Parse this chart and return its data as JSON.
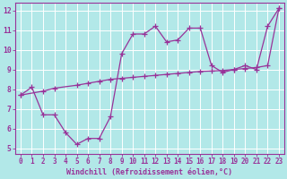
{
  "xlabel": "Windchill (Refroidissement éolien,°C)",
  "background_color": "#b2e8e8",
  "grid_color": "#ffffff",
  "line_color": "#993399",
  "xlim": [
    -0.5,
    23.5
  ],
  "ylim": [
    4.7,
    12.4
  ],
  "xtick_vals": [
    0,
    1,
    2,
    3,
    4,
    5,
    6,
    7,
    8,
    9,
    10,
    11,
    12,
    13,
    14,
    15,
    16,
    17,
    18,
    19,
    20,
    21,
    22,
    23
  ],
  "xtick_labels": [
    "0",
    "1",
    "2",
    "3",
    "4",
    "5",
    "6",
    "7",
    "8",
    "9",
    "10",
    "11",
    "12",
    "13",
    "14",
    "15",
    "16",
    "17",
    "18",
    "19",
    "20",
    "21",
    "22",
    "23"
  ],
  "ytick_vals": [
    5,
    6,
    7,
    8,
    9,
    10,
    11,
    12
  ],
  "ytick_labels": [
    "5",
    "6",
    "7",
    "8",
    "9",
    "10",
    "11",
    "12"
  ],
  "line1_x": [
    0,
    1,
    2,
    3,
    4,
    5,
    6,
    7,
    8,
    9,
    10,
    11,
    12,
    13,
    14,
    15,
    16,
    17,
    18,
    19,
    20,
    21,
    22,
    23
  ],
  "line1_y": [
    7.7,
    8.1,
    6.7,
    6.7,
    5.8,
    5.2,
    5.5,
    5.5,
    6.6,
    9.8,
    10.8,
    10.8,
    11.2,
    10.4,
    10.5,
    11.1,
    11.1,
    9.2,
    8.85,
    9.0,
    9.2,
    9.0,
    11.2,
    12.1
  ],
  "line2_x": [
    0,
    2,
    3,
    5,
    6,
    7,
    8,
    9,
    10,
    11,
    12,
    13,
    14,
    15,
    16,
    17,
    18,
    19,
    20,
    21,
    22,
    23
  ],
  "line2_y": [
    7.7,
    7.9,
    8.05,
    8.2,
    8.3,
    8.4,
    8.5,
    8.55,
    8.6,
    8.65,
    8.7,
    8.75,
    8.8,
    8.85,
    8.9,
    8.92,
    8.95,
    9.0,
    9.05,
    9.1,
    9.2,
    12.1
  ],
  "xlabel_fontsize": 6,
  "tick_fontsize": 5.5,
  "linewidth": 0.9,
  "markersize": 4,
  "markeredgewidth": 0.9
}
